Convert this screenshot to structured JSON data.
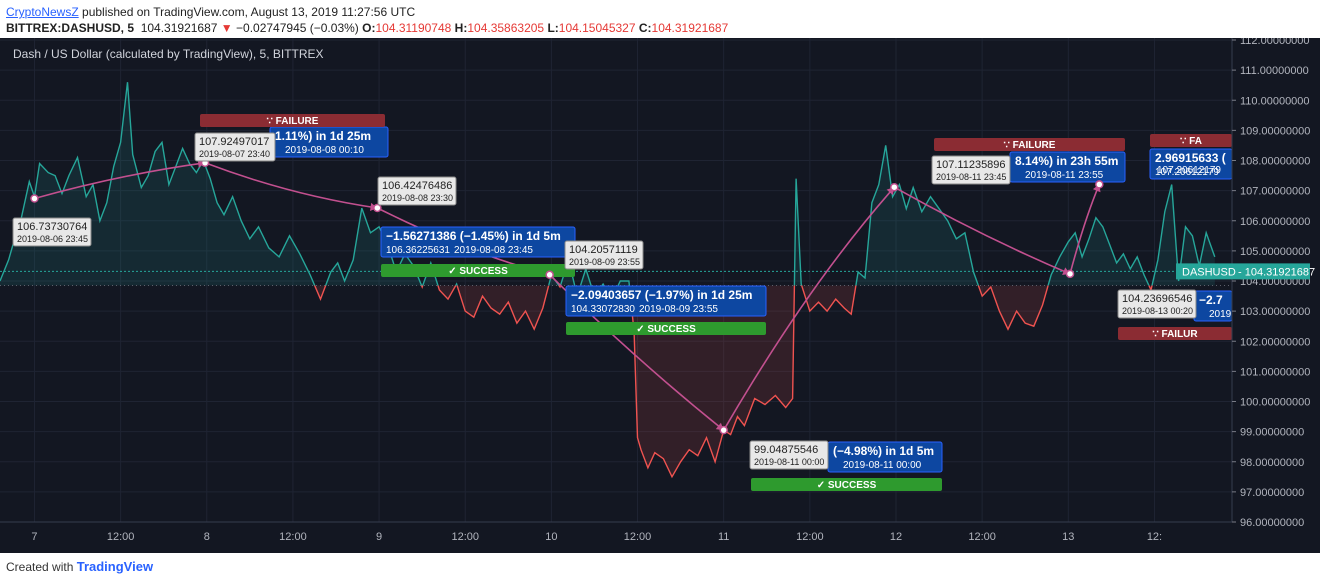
{
  "header": {
    "author": "CryptoNewsZ",
    "published": "published on TradingView.com, August 13, 2019 11:27:56 UTC",
    "symbol": "BITTREX:DASHUSD, 5",
    "last": "104.31921687",
    "arrow": "▼",
    "change": "−0.02747945 (−0.03%)",
    "ohlc": [
      {
        "label": "O:",
        "value": "104.31190748"
      },
      {
        "label": "H:",
        "value": "104.35863205"
      },
      {
        "label": "L:",
        "value": "104.15045327"
      },
      {
        "label": "C:",
        "value": "104.31921687"
      }
    ]
  },
  "footer": {
    "created_with": "Created with",
    "brand": "TradingView"
  },
  "colors": {
    "background": "#131722",
    "up": "#26a69a",
    "down": "#ef5350",
    "path": "#c2508f",
    "label_blue": "#0d47a1",
    "success": "#2e9a2e",
    "failure": "#8b2c33"
  },
  "chart_data": {
    "type": "line",
    "title": "Dash / US Dollar (calculated by TradingView), 5, BITTREX",
    "ylim": [
      96,
      112
    ],
    "y_ticks": [
      "96.00000000",
      "97.00000000",
      "98.00000000",
      "99.00000000",
      "100.00000000",
      "101.00000000",
      "102.00000000",
      "103.00000000",
      "104.00000000",
      "105.00000000",
      "106.00000000",
      "107.00000000",
      "108.00000000",
      "109.00000000",
      "110.00000000",
      "111.00000000",
      "112.00000000"
    ],
    "x_range_days": [
      6.8,
      13.95
    ],
    "x_ticks": [
      {
        "label": "7",
        "day": 7.0
      },
      {
        "label": "12:00",
        "day": 7.5
      },
      {
        "label": "8",
        "day": 8.0
      },
      {
        "label": "12:00",
        "day": 8.5
      },
      {
        "label": "9",
        "day": 9.0
      },
      {
        "label": "12:00",
        "day": 9.5
      },
      {
        "label": "10",
        "day": 10.0
      },
      {
        "label": "12:00",
        "day": 10.5
      },
      {
        "label": "11",
        "day": 11.0
      },
      {
        "label": "12:00",
        "day": 11.5
      },
      {
        "label": "12",
        "day": 12.0
      },
      {
        "label": "12:00",
        "day": 12.5
      },
      {
        "label": "13",
        "day": 13.0
      },
      {
        "label": "12:",
        "day": 13.5
      }
    ],
    "baseline": 103.85,
    "last_value": 104.31921687,
    "last_label": "DASHUSD",
    "last_price": "104.31921687",
    "price_days": [
      6.8,
      6.85,
      6.88,
      6.92,
      6.97,
      7.0,
      7.03,
      7.08,
      7.12,
      7.16,
      7.2,
      7.25,
      7.3,
      7.34,
      7.38,
      7.42,
      7.46,
      7.5,
      7.54,
      7.57,
      7.62,
      7.66,
      7.7,
      7.74,
      7.78,
      7.82,
      7.86,
      7.9,
      7.94,
      7.98,
      8.02,
      8.06,
      8.1,
      8.15,
      8.2,
      8.25,
      8.3,
      8.36,
      8.42,
      8.48,
      8.54,
      8.6,
      8.66,
      8.72,
      8.76,
      8.8,
      8.85,
      8.9,
      8.95,
      9.0,
      9.05,
      9.1,
      9.15,
      9.2,
      9.25,
      9.3,
      9.35,
      9.4,
      9.45,
      9.5,
      9.55,
      9.6,
      9.65,
      9.7,
      9.75,
      9.8,
      9.85,
      9.9,
      9.95,
      10.0,
      10.05,
      10.1,
      10.15,
      10.2,
      10.25,
      10.3,
      10.35,
      10.4,
      10.45,
      10.48,
      10.5,
      10.52,
      10.56,
      10.6,
      10.65,
      10.7,
      10.75,
      10.8,
      10.85,
      10.9,
      10.95,
      11.0,
      11.04,
      11.08,
      11.12,
      11.18,
      11.24,
      11.3,
      11.36,
      11.4,
      11.42,
      11.45,
      11.5,
      11.55,
      11.6,
      11.65,
      11.7,
      11.74,
      11.78,
      11.82,
      11.86,
      11.9,
      11.94,
      11.98,
      12.02,
      12.06,
      12.1,
      12.15,
      12.2,
      12.25,
      12.3,
      12.35,
      12.4,
      12.45,
      12.5,
      12.55,
      12.6,
      12.65,
      12.7,
      12.75,
      12.8,
      12.85,
      12.9,
      12.95,
      13.0,
      13.04,
      13.08,
      13.12,
      13.16,
      13.2,
      13.24,
      13.28,
      13.32,
      13.36,
      13.4,
      13.44,
      13.48,
      13.52,
      13.56,
      13.6,
      13.64,
      13.68,
      13.72,
      13.76,
      13.8,
      13.85
    ],
    "price_values": [
      104.0,
      104.7,
      105.3,
      106.0,
      107.3,
      106.8,
      107.9,
      107.6,
      107.5,
      106.9,
      107.5,
      108.1,
      106.8,
      107.2,
      106.0,
      106.6,
      107.8,
      108.6,
      110.6,
      108.2,
      107.1,
      107.5,
      108.3,
      108.6,
      107.2,
      107.8,
      108.4,
      107.9,
      107.6,
      108.0,
      107.4,
      106.6,
      106.2,
      106.8,
      106.0,
      105.4,
      105.8,
      105.1,
      104.8,
      105.5,
      104.9,
      104.2,
      103.4,
      104.3,
      104.6,
      104.0,
      104.7,
      106.42,
      105.6,
      105.8,
      105.2,
      104.3,
      104.9,
      104.5,
      103.8,
      104.6,
      103.7,
      103.4,
      103.9,
      103.0,
      102.8,
      103.5,
      103.1,
      102.9,
      103.3,
      102.6,
      103.0,
      102.4,
      103.1,
      104.2,
      103.8,
      104.7,
      103.5,
      104.4,
      103.5,
      103.9,
      103.4,
      104.0,
      104.0,
      102.3,
      98.8,
      98.4,
      97.8,
      98.3,
      98.1,
      97.5,
      98.0,
      98.4,
      98.2,
      98.8,
      98.0,
      99.05,
      98.9,
      99.5,
      99.2,
      100.1,
      99.9,
      100.2,
      99.8,
      100.1,
      107.4,
      103.9,
      103.0,
      103.3,
      103.0,
      103.4,
      103.1,
      102.9,
      104.3,
      104.1,
      106.6,
      107.2,
      108.5,
      106.8,
      107.2,
      106.4,
      107.1,
      106.3,
      106.8,
      106.4,
      106.0,
      105.4,
      105.6,
      104.3,
      103.5,
      103.8,
      103.0,
      102.4,
      103.0,
      102.6,
      102.5,
      103.2,
      104.2,
      104.8,
      105.3,
      105.6,
      104.8,
      105.4,
      106.1,
      105.8,
      105.2,
      104.6,
      104.9,
      104.4,
      104.8,
      104.2,
      103.7,
      104.7,
      106.3,
      107.2,
      104.0,
      105.8,
      105.5,
      104.5,
      105.6,
      104.8,
      105.2,
      104.3
    ],
    "annotations": [
      {
        "name": "point-1",
        "day": 7.0,
        "value": 106.73730764,
        "price": "106.73730764",
        "date": "2019-08-06 23:45"
      },
      {
        "name": "point-2",
        "day": 7.99,
        "value": 107.92497017,
        "price": "107.92497017",
        "date": "2019-08-07 23:40"
      },
      {
        "name": "point-3",
        "day": 8.99,
        "value": 106.42476486,
        "price": "106.42476486",
        "date": "2019-08-08 23:30"
      },
      {
        "name": "point-4",
        "day": 9.99,
        "value": 104.20571119,
        "price": "104.20571119",
        "date": "2019-08-09 23:55"
      },
      {
        "name": "point-5",
        "day": 11.0,
        "value": 99.04875546,
        "price": "99.04875546",
        "date": "2019-08-11 00:00"
      },
      {
        "name": "point-6",
        "day": 11.99,
        "value": 107.11235896,
        "price": "107.11235896",
        "date": "2019-08-11 23:45"
      },
      {
        "name": "point-7",
        "day": 13.01,
        "value": 104.23696546,
        "price": "104.23696546",
        "date": "2019-08-13 00:20"
      },
      {
        "name": "point-8",
        "day": 13.18,
        "value": 107.20612179,
        "price": "107.20612179",
        "date": ""
      }
    ],
    "moves": [
      {
        "name": "move-1",
        "text": "1.11%) in 1d 25m",
        "sub": "2019-08-08  00:10",
        "status": "FAILURE"
      },
      {
        "name": "move-2",
        "text": "−1.56271386 (−1.45%) in 1d 5m",
        "sub_price": "106.36225631",
        "sub": "2019-08-08  23:45",
        "status": "SUCCESS"
      },
      {
        "name": "move-3",
        "text": "−2.09403657 (−1.97%) in 1d 25m",
        "sub_price": "104.33072830",
        "sub": "2019-08-09  23:55",
        "status": "SUCCESS"
      },
      {
        "name": "move-4",
        "text": "(−4.98%) in 1d 5m",
        "sub": "2019-08-11  00:00",
        "status": "SUCCESS"
      },
      {
        "name": "move-5",
        "text": "8.14%) in 23h 55m",
        "sub": "2019-08-11  23:55",
        "status": "FAILURE"
      },
      {
        "name": "move-6",
        "text": "2.96915633 (",
        "sub_price": "107.20612179",
        "status": "FA"
      },
      {
        "name": "move-7",
        "text": "−2.7",
        "sub": "2019-0",
        "status": "FAILUR"
      }
    ]
  }
}
